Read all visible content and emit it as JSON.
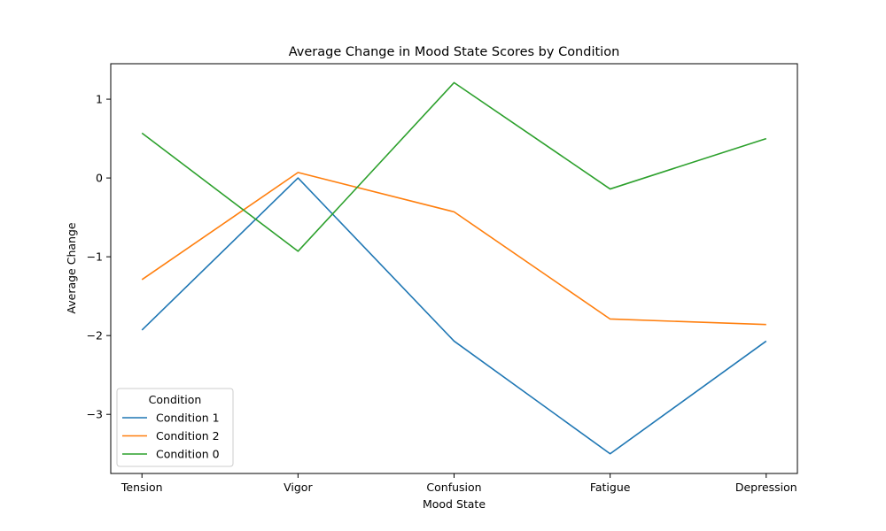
{
  "chart_data": {
    "type": "line",
    "title": "Average Change in Mood State Scores by Condition",
    "xlabel": "Mood State",
    "ylabel": "Average Change",
    "categories": [
      "Tension",
      "Vigor",
      "Confusion",
      "Fatigue",
      "Depression"
    ],
    "ylim": [
      -3.75,
      1.45
    ],
    "yticks": [
      1,
      0,
      -1,
      -2,
      -3
    ],
    "ytick_labels": [
      "1",
      "0",
      "−1",
      "−2",
      "−3"
    ],
    "grid": false,
    "legend": {
      "title": "Condition",
      "position": "lower-left"
    },
    "series": [
      {
        "name": "Condition 1",
        "color": "#1f77b4",
        "values": [
          -1.93,
          0.0,
          -2.07,
          -3.5,
          -2.07
        ]
      },
      {
        "name": "Condition 2",
        "color": "#ff7f0e",
        "values": [
          -1.29,
          0.07,
          -0.43,
          -1.79,
          -1.86
        ]
      },
      {
        "name": "Condition 0",
        "color": "#2ca02c",
        "values": [
          0.57,
          -0.93,
          1.21,
          -0.14,
          0.5
        ]
      }
    ]
  }
}
